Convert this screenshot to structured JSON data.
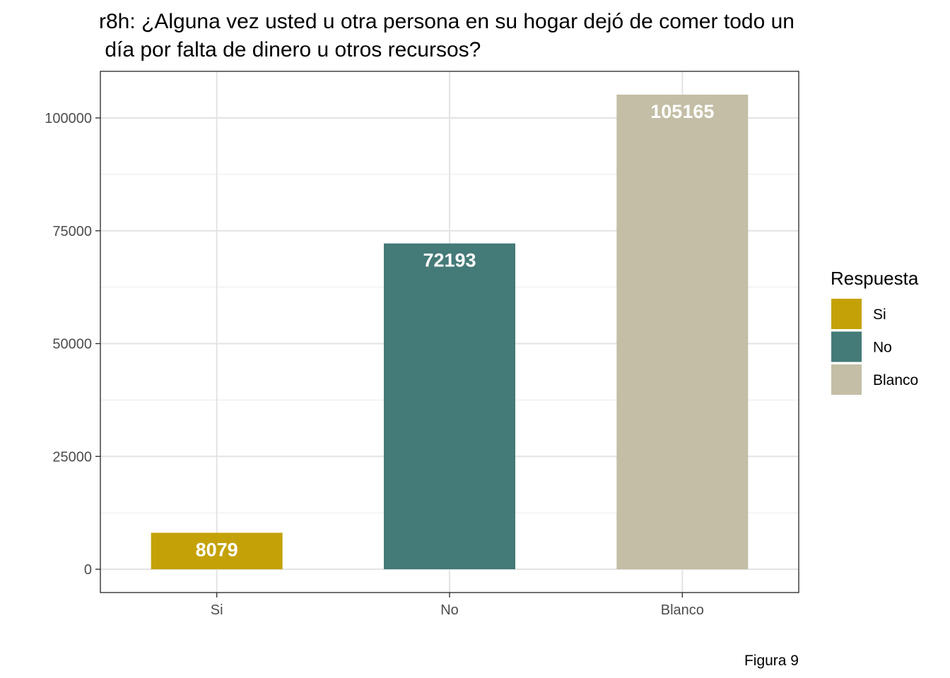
{
  "chart_data": {
    "type": "bar",
    "title_lines": [
      "r8h: ¿Alguna vez usted u otra persona en su hogar dejó de comer todo un",
      " día por falta de dinero u otros recursos?"
    ],
    "categories": [
      "Si",
      "No",
      "Blanco"
    ],
    "values": [
      8079,
      72193,
      105165
    ],
    "data_labels": [
      "8079",
      "72193",
      "105165"
    ],
    "colors": [
      "#c4a207",
      "#447a78",
      "#c3bea5"
    ],
    "ylim": [
      0,
      110000
    ],
    "y_ticks": [
      0,
      25000,
      50000,
      75000,
      100000
    ],
    "y_tick_labels": [
      "0",
      "25000",
      "50000",
      "75000",
      "100000"
    ],
    "grid": true,
    "legend": {
      "title": "Respuesta",
      "position": "right",
      "items": [
        "Si",
        "No",
        "Blanco"
      ]
    },
    "caption": "Figura 9"
  }
}
